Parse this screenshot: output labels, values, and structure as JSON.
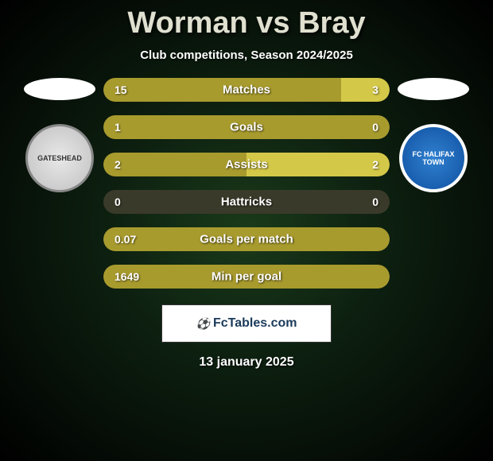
{
  "title": "Worman vs Bray",
  "subtitle": "Club competitions, Season 2024/2025",
  "left_team": {
    "name": "GATESHEAD",
    "badge_text": "GATESHEAD\nFOOTBALL CLUB"
  },
  "right_team": {
    "name": "FC HALIFAX TOWN",
    "badge_text": "FC HALIFAX TOWN"
  },
  "colors": {
    "bar_left": "#a89b2e",
    "bar_right": "#d4c848",
    "bar_empty": "#3a3a2a"
  },
  "stats": [
    {
      "label": "Matches",
      "left_value": "15",
      "right_value": "3",
      "left_pct": 83,
      "right_pct": 17
    },
    {
      "label": "Goals",
      "left_value": "1",
      "right_value": "0",
      "left_pct": 100,
      "right_pct": 0
    },
    {
      "label": "Assists",
      "left_value": "2",
      "right_value": "2",
      "left_pct": 50,
      "right_pct": 50
    },
    {
      "label": "Hattricks",
      "left_value": "0",
      "right_value": "0",
      "left_pct": 0,
      "right_pct": 0
    },
    {
      "label": "Goals per match",
      "left_value": "0.07",
      "right_value": "",
      "left_pct": 100,
      "right_pct": 0
    },
    {
      "label": "Min per goal",
      "left_value": "1649",
      "right_value": "",
      "left_pct": 100,
      "right_pct": 0
    }
  ],
  "footer": {
    "site": "FcTables.com"
  },
  "date": "13 january 2025"
}
